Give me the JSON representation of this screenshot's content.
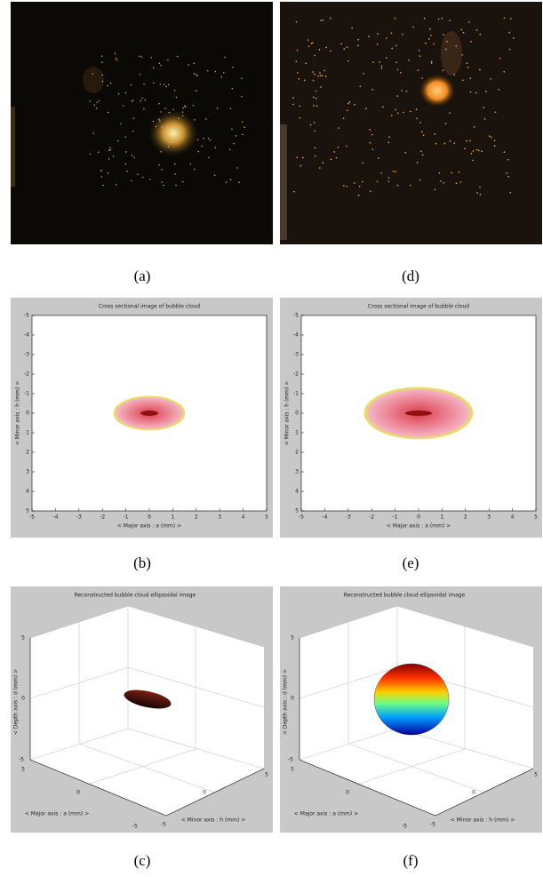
{
  "photos": [
    {
      "label": "(a)"
    },
    {
      "label": "(d)"
    }
  ],
  "cross_sections": [
    {
      "label": "(b)",
      "title": "Cross sectional image of bubble cloud",
      "x_label": "< Major axis : a (mm) >",
      "y_label": "< Minor axis : h (mm) >",
      "xlim": [
        -5,
        5
      ],
      "ylim": [
        -5,
        5
      ],
      "xticks": [
        -5,
        -4,
        -3,
        -2,
        -1,
        0,
        1,
        2,
        3,
        4,
        5
      ],
      "yticks": [
        -5,
        -4,
        -3,
        -2,
        -1,
        0,
        1,
        2,
        3,
        4,
        5
      ],
      "semi_major": 1.5,
      "semi_minor": 0.85
    },
    {
      "label": "(e)",
      "title": "Cross sectional image of bubble cloud",
      "x_label": "< Major axis : a (mm) >",
      "y_label": "< Minor axis : h (mm) >",
      "xlim": [
        -5,
        5
      ],
      "ylim": [
        -5,
        5
      ],
      "xticks": [
        -5,
        -4,
        -3,
        -2,
        -1,
        0,
        1,
        2,
        3,
        4,
        5
      ],
      "yticks": [
        -5,
        -4,
        -3,
        -2,
        -1,
        0,
        1,
        2,
        3,
        4,
        5
      ],
      "semi_major": 2.3,
      "semi_minor": 1.3
    }
  ],
  "reconstructions": [
    {
      "label": "(c)",
      "title": "Reconstructed bubble cloud ellipsoidal image",
      "z_label": "< Depth axis : d (mm) >",
      "x_label": "< Major axis : a (mm) >",
      "y_label": "< Minor axis : h (mm) >",
      "zticks": [
        5,
        0,
        -5
      ],
      "xticks": [
        5,
        0,
        -5
      ],
      "yticks": [
        -5,
        0,
        5
      ]
    },
    {
      "label": "(f)",
      "title": "Reconstructed bubble cloud ellipsoidal image",
      "z_label": "< Depth axis : d (mm) >",
      "x_label": "< Major axis : a (mm) >",
      "y_label": "< Minor axis : h (mm) >",
      "zticks": [
        5,
        0,
        -5
      ],
      "xticks": [
        5,
        0,
        -5
      ],
      "yticks": [
        -5,
        0,
        5
      ]
    }
  ]
}
